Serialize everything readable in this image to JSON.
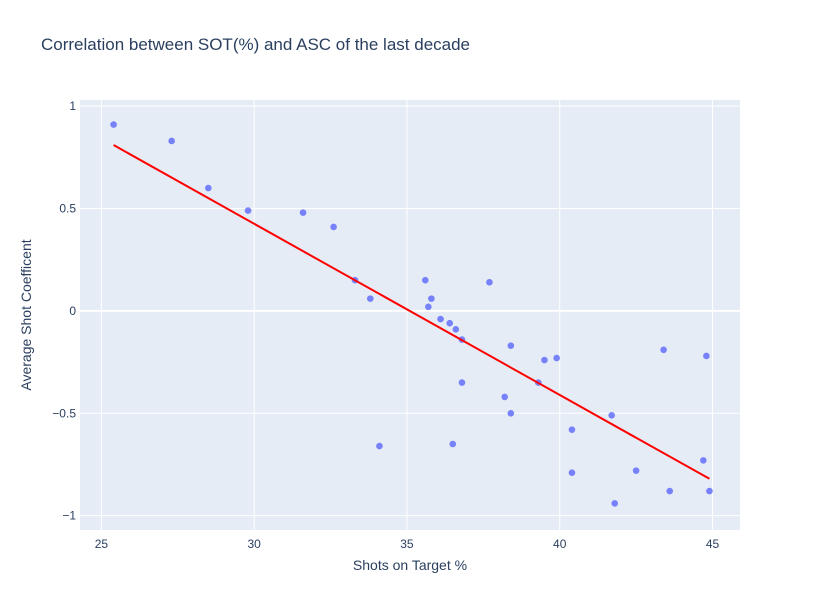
{
  "chart_data": {
    "type": "scatter",
    "title": "Correlation between SOT(%) and ASC of the last decade",
    "xlabel": "Shots on Target %",
    "ylabel": "Average Shot Coefficent",
    "xlim": [
      24.3,
      45.9
    ],
    "ylim": [
      -1.07,
      1.03
    ],
    "x_ticks": [
      25,
      30,
      35,
      40,
      45
    ],
    "y_ticks": [
      1,
      0.5,
      0,
      -0.5,
      -1
    ],
    "y_tick_labels": [
      "1",
      "0.5",
      "0",
      "−0.5",
      "−1"
    ],
    "grid": true,
    "legend": "none",
    "colors": {
      "background": "#e5ecf6",
      "grid": "#ffffff",
      "points": "#636efa",
      "trendline": "#ff0000",
      "text": "#2a3f5f"
    },
    "series": [
      {
        "points": [
          [
            25.4,
            0.91
          ],
          [
            27.3,
            0.83
          ],
          [
            28.5,
            0.6
          ],
          [
            29.8,
            0.49
          ],
          [
            31.6,
            0.48
          ],
          [
            32.6,
            0.41
          ],
          [
            33.3,
            0.15
          ],
          [
            33.8,
            0.06
          ],
          [
            34.1,
            -0.66
          ],
          [
            35.6,
            0.15
          ],
          [
            35.7,
            0.02
          ],
          [
            35.8,
            0.06
          ],
          [
            36.1,
            -0.04
          ],
          [
            36.4,
            -0.06
          ],
          [
            36.5,
            -0.65
          ],
          [
            36.6,
            -0.09
          ],
          [
            36.8,
            -0.14
          ],
          [
            36.8,
            -0.35
          ],
          [
            37.7,
            0.14
          ],
          [
            38.2,
            -0.42
          ],
          [
            38.4,
            -0.17
          ],
          [
            38.4,
            -0.5
          ],
          [
            39.3,
            -0.35
          ],
          [
            39.5,
            -0.24
          ],
          [
            39.9,
            -0.23
          ],
          [
            40.4,
            -0.58
          ],
          [
            40.4,
            -0.79
          ],
          [
            41.7,
            -0.51
          ],
          [
            41.8,
            -0.94
          ],
          [
            42.5,
            -0.78
          ],
          [
            43.4,
            -0.19
          ],
          [
            43.6,
            -0.88
          ],
          [
            44.7,
            -0.73
          ],
          [
            44.8,
            -0.22
          ],
          [
            44.9,
            -0.88
          ]
        ]
      }
    ],
    "trendline": {
      "x": [
        25.4,
        44.9
      ],
      "y": [
        0.81,
        -0.82
      ]
    }
  }
}
